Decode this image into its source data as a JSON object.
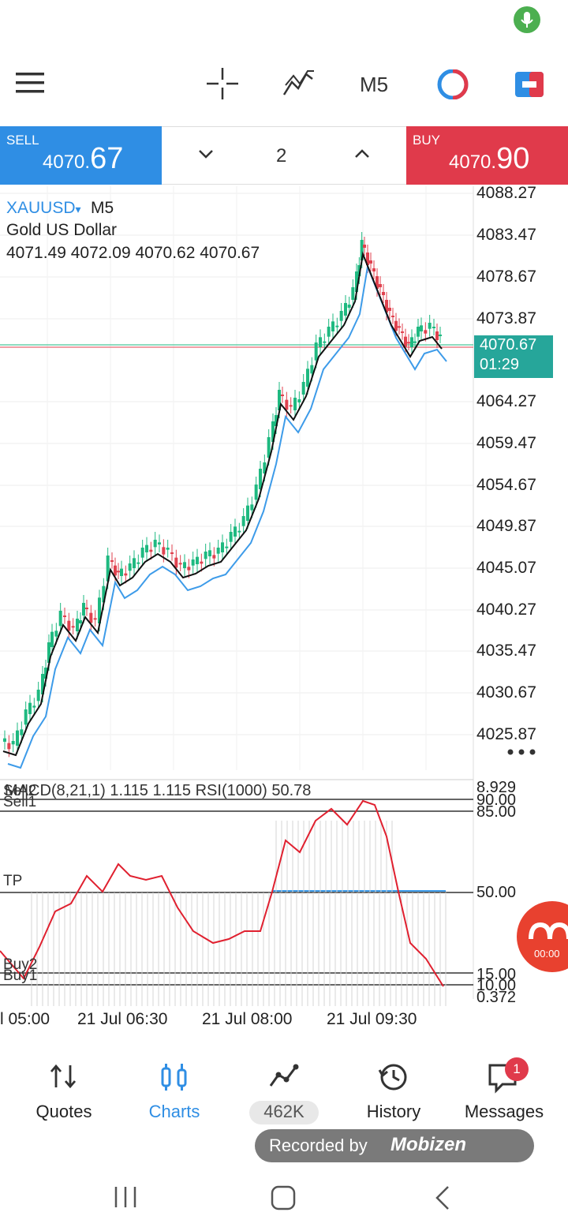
{
  "status_bar": {
    "mic_icon": "microphone-icon"
  },
  "toolbar": {
    "menu_icon": "hamburger-menu-icon",
    "crosshair_icon": "crosshair-icon",
    "indicators_icon": "indicators-icon",
    "timeframe": "M5",
    "objects_icon": "chart-objects-icon",
    "trade_icon": "trade-icon"
  },
  "trade_bar": {
    "sell_label": "SELL",
    "sell_price_main": "4070.",
    "sell_price_big": "67",
    "lot": "2",
    "buy_label": "BUY",
    "buy_price_main": "4070.",
    "buy_price_big": "90"
  },
  "symbol": {
    "name": "XAUUSD",
    "arrow": "▾",
    "timeframe": "M5",
    "description": "Gold US Dollar",
    "ohlc": "4071.49 4072.09 4070.62 4070.67"
  },
  "price_axis": [
    "4088.27",
    "4083.47",
    "4078.67",
    "4073.87",
    "4064.27",
    "4059.47",
    "4054.67",
    "4049.87",
    "4045.07",
    "4040.27",
    "4035.47",
    "4030.67",
    "4025.87"
  ],
  "current_price": {
    "price": "4070.67",
    "countdown": "01:29"
  },
  "more_icon": "more-dots-icon",
  "indicator": {
    "header": "MACD(8,21,1) 1.115 1.115 RSI(1000) 50.78",
    "overlap_label": "Sell2",
    "sell1_label": "Sell1",
    "tp_label": "TP",
    "buy2_label": "Buy2",
    "buy1_label": "Buy1",
    "axis": [
      "8.929",
      "90.00",
      "85.00",
      "50.00",
      "15.00",
      "10.00",
      "0.372"
    ]
  },
  "time_axis": [
    "l 05:00",
    "21 Jul 06:30",
    "21 Jul 08:00",
    "21 Jul 09:30"
  ],
  "nav": {
    "quotes": "Quotes",
    "charts": "Charts",
    "trade": "462K",
    "history": "History",
    "messages": "Messages",
    "messages_badge": "1"
  },
  "recorder": {
    "text": "Recorded by",
    "brand": "Mobizen",
    "timer": "00:00"
  },
  "system_nav": {
    "recents": "recents-icon",
    "home": "home-icon",
    "back": "back-icon"
  },
  "colors": {
    "sell": "#2f8ee4",
    "buy": "#e03a4b",
    "bull_candle": "#1eb980",
    "bear_candle": "#e0424f",
    "current_price_bg": "#26a69a",
    "accent": "#2f8ee4"
  }
}
